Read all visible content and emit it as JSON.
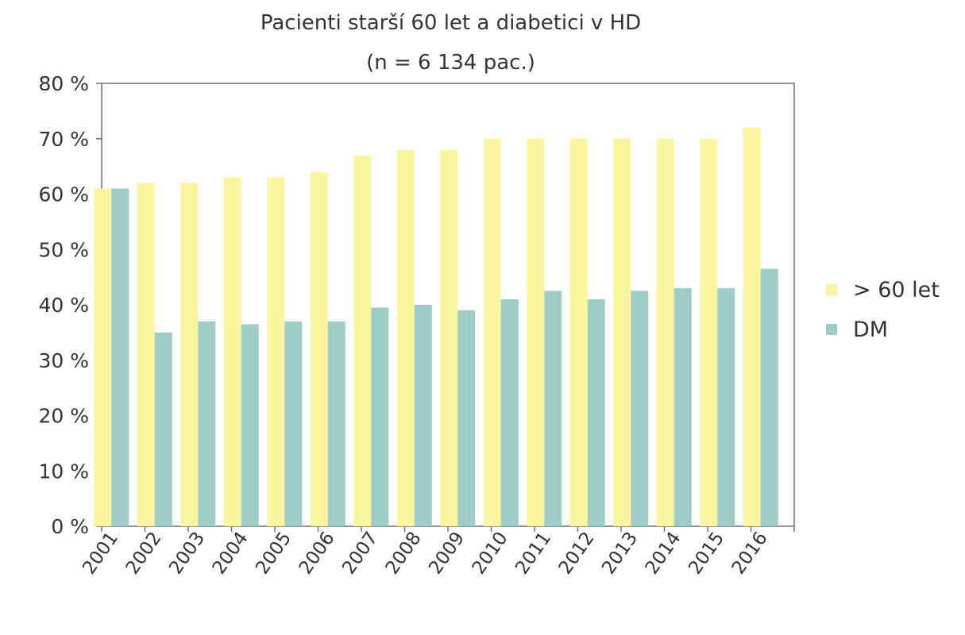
{
  "chart_data": {
    "type": "bar",
    "title": "Pacienti starší 60 let a diabetici v HD",
    "subtitle": "(n = 6 134 pac.)",
    "categories": [
      "2001",
      "2002",
      "2003",
      "2004",
      "2005",
      "2006",
      "2007",
      "2008",
      "2009",
      "2010",
      "2011",
      "2012",
      "2013",
      "2014",
      "2015",
      "2016"
    ],
    "series": [
      {
        "name": "> 60 let",
        "color": "#fbf5a0",
        "values": [
          61,
          62,
          62,
          63,
          63,
          64,
          67,
          68,
          68,
          70,
          70,
          70,
          70,
          70,
          70,
          72
        ]
      },
      {
        "name": "DM",
        "color": "#9dcdc6",
        "values": [
          61,
          35,
          37,
          36.5,
          37,
          37,
          39.5,
          40,
          39,
          41,
          42.5,
          41,
          42.5,
          43,
          43,
          46.5
        ]
      }
    ],
    "ylim": [
      0,
      80
    ],
    "yticks": [
      0,
      10,
      20,
      30,
      40,
      50,
      60,
      70,
      80
    ],
    "ytick_labels": [
      "0 %",
      "10 %",
      "20 %",
      "30 %",
      "40 %",
      "50 %",
      "60 %",
      "70 %",
      "80 %"
    ],
    "xlabel": "",
    "ylabel": "",
    "grid": false,
    "legend_position": "right"
  }
}
